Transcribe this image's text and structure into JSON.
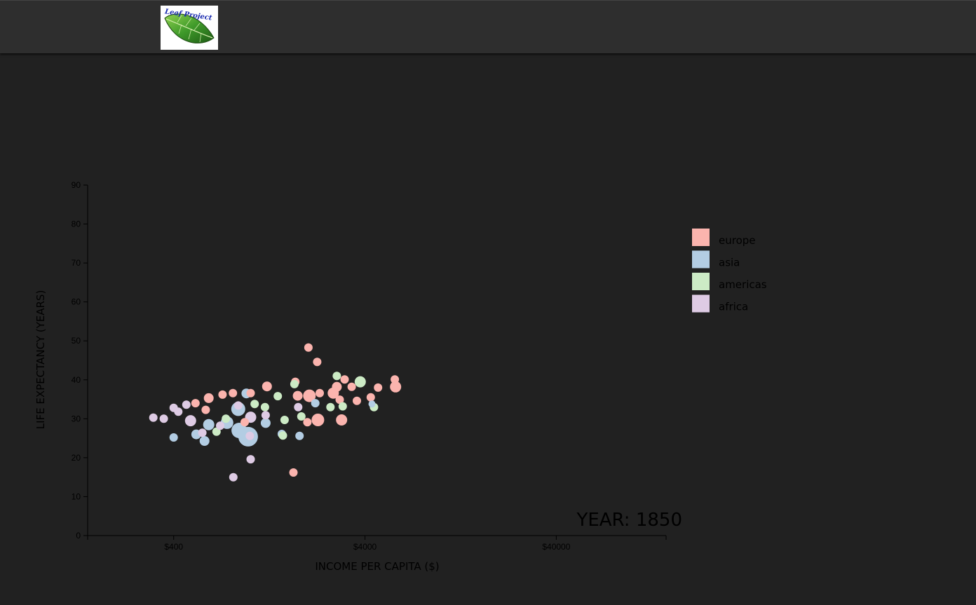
{
  "header": {
    "logo_text": "Leaf Project"
  },
  "chart_data": {
    "type": "scatter",
    "xlabel": "INCOME PER CAPITA ($)",
    "ylabel": "LIFE EXPECTANCY (YEARS)",
    "x_scale": "log",
    "xlim": [
      142,
      150000
    ],
    "ylim": [
      0,
      90
    ],
    "x_ticks": [
      {
        "value": 400,
        "label": "$400"
      },
      {
        "value": 4000,
        "label": "$4000"
      },
      {
        "value": 40000,
        "label": "$40000"
      }
    ],
    "y_ticks": [
      0,
      10,
      20,
      30,
      40,
      50,
      60,
      70,
      80,
      90
    ],
    "year_label": "YEAR: 1850",
    "legend_position": "right",
    "legend": [
      {
        "label": "europe",
        "color": "#fbb4ae"
      },
      {
        "label": "asia",
        "color": "#b3cde3"
      },
      {
        "label": "americas",
        "color": "#ccebc5"
      },
      {
        "label": "africa",
        "color": "#decbe4"
      }
    ],
    "points": [
      {
        "continent": "europe",
        "x": 2025,
        "y": 48.3,
        "r": 6
      },
      {
        "continent": "europe",
        "x": 2250,
        "y": 44.6,
        "r": 6
      },
      {
        "continent": "europe",
        "x": 5730,
        "y": 40.1,
        "r": 6
      },
      {
        "continent": "europe",
        "x": 5780,
        "y": 38.2,
        "r": 8
      },
      {
        "continent": "europe",
        "x": 3130,
        "y": 40.1,
        "r": 6
      },
      {
        "continent": "europe",
        "x": 3410,
        "y": 38.2,
        "r": 6
      },
      {
        "continent": "europe",
        "x": 2850,
        "y": 38.2,
        "r": 7
      },
      {
        "continent": "europe",
        "x": 2730,
        "y": 36.6,
        "r": 8
      },
      {
        "continent": "europe",
        "x": 2320,
        "y": 36.6,
        "r": 6
      },
      {
        "continent": "europe",
        "x": 2050,
        "y": 35.9,
        "r": 9
      },
      {
        "continent": "europe",
        "x": 1780,
        "y": 35.9,
        "r": 7
      },
      {
        "continent": "europe",
        "x": 1730,
        "y": 39.5,
        "r": 6
      },
      {
        "continent": "europe",
        "x": 1230,
        "y": 38.3,
        "r": 7
      },
      {
        "continent": "europe",
        "x": 2000,
        "y": 29.1,
        "r": 6
      },
      {
        "continent": "europe",
        "x": 2270,
        "y": 29.7,
        "r": 9
      },
      {
        "continent": "europe",
        "x": 2950,
        "y": 34.9,
        "r": 6
      },
      {
        "continent": "europe",
        "x": 3020,
        "y": 29.7,
        "r": 8
      },
      {
        "continent": "europe",
        "x": 3630,
        "y": 34.6,
        "r": 6
      },
      {
        "continent": "europe",
        "x": 4290,
        "y": 35.5,
        "r": 6
      },
      {
        "continent": "europe",
        "x": 4680,
        "y": 38.0,
        "r": 6
      },
      {
        "continent": "europe",
        "x": 1690,
        "y": 16.2,
        "r": 6
      },
      {
        "continent": "europe",
        "x": 940,
        "y": 29.1,
        "r": 6
      },
      {
        "continent": "europe",
        "x": 1010,
        "y": 36.6,
        "r": 6
      },
      {
        "continent": "europe",
        "x": 720,
        "y": 36.2,
        "r": 6
      },
      {
        "continent": "europe",
        "x": 610,
        "y": 35.3,
        "r": 7
      },
      {
        "continent": "europe",
        "x": 520,
        "y": 34.0,
        "r": 6
      },
      {
        "continent": "europe",
        "x": 588,
        "y": 32.3,
        "r": 6
      },
      {
        "continent": "europe",
        "x": 816,
        "y": 36.6,
        "r": 6
      },
      {
        "continent": "asia",
        "x": 400,
        "y": 25.2,
        "r": 6
      },
      {
        "continent": "asia",
        "x": 525,
        "y": 26.0,
        "r": 7
      },
      {
        "continent": "asia",
        "x": 580,
        "y": 24.3,
        "r": 7
      },
      {
        "continent": "asia",
        "x": 610,
        "y": 28.5,
        "r": 8
      },
      {
        "continent": "asia",
        "x": 760,
        "y": 29.0,
        "r": 9
      },
      {
        "continent": "asia",
        "x": 880,
        "y": 27.0,
        "r": 11
      },
      {
        "continent": "asia",
        "x": 980,
        "y": 25.4,
        "r": 14
      },
      {
        "continent": "asia",
        "x": 870,
        "y": 32.5,
        "r": 10
      },
      {
        "continent": "asia",
        "x": 960,
        "y": 36.5,
        "r": 7
      },
      {
        "continent": "asia",
        "x": 1210,
        "y": 28.9,
        "r": 7
      },
      {
        "continent": "asia",
        "x": 1470,
        "y": 26.1,
        "r": 6
      },
      {
        "continent": "asia",
        "x": 1820,
        "y": 25.6,
        "r": 6
      },
      {
        "continent": "asia",
        "x": 2200,
        "y": 34.0,
        "r": 6
      },
      {
        "continent": "asia",
        "x": 4350,
        "y": 33.8,
        "r": 5
      },
      {
        "continent": "americas",
        "x": 2850,
        "y": 41.0,
        "r": 6
      },
      {
        "continent": "americas",
        "x": 3780,
        "y": 39.5,
        "r": 8
      },
      {
        "continent": "americas",
        "x": 2640,
        "y": 33.0,
        "r": 6
      },
      {
        "continent": "americas",
        "x": 3060,
        "y": 33.2,
        "r": 6
      },
      {
        "continent": "americas",
        "x": 4460,
        "y": 33.0,
        "r": 6
      },
      {
        "continent": "americas",
        "x": 1710,
        "y": 38.9,
        "r": 6
      },
      {
        "continent": "americas",
        "x": 1400,
        "y": 35.8,
        "r": 6
      },
      {
        "continent": "americas",
        "x": 1520,
        "y": 29.7,
        "r": 6
      },
      {
        "continent": "americas",
        "x": 1490,
        "y": 25.7,
        "r": 6
      },
      {
        "continent": "americas",
        "x": 1860,
        "y": 30.6,
        "r": 6
      },
      {
        "continent": "americas",
        "x": 1200,
        "y": 33.0,
        "r": 6
      },
      {
        "continent": "americas",
        "x": 750,
        "y": 30.0,
        "r": 6
      },
      {
        "continent": "americas",
        "x": 670,
        "y": 26.7,
        "r": 6
      },
      {
        "continent": "americas",
        "x": 1060,
        "y": 33.8,
        "r": 6
      },
      {
        "continent": "africa",
        "x": 313,
        "y": 30.3,
        "r": 6
      },
      {
        "continent": "africa",
        "x": 355,
        "y": 30.0,
        "r": 6
      },
      {
        "continent": "africa",
        "x": 400,
        "y": 32.8,
        "r": 6
      },
      {
        "continent": "africa",
        "x": 423,
        "y": 31.8,
        "r": 6
      },
      {
        "continent": "africa",
        "x": 466,
        "y": 33.6,
        "r": 6
      },
      {
        "continent": "africa",
        "x": 490,
        "y": 29.5,
        "r": 8
      },
      {
        "continent": "africa",
        "x": 565,
        "y": 26.4,
        "r": 6
      },
      {
        "continent": "africa",
        "x": 700,
        "y": 28.2,
        "r": 6
      },
      {
        "continent": "africa",
        "x": 870,
        "y": 33.4,
        "r": 6
      },
      {
        "continent": "africa",
        "x": 1010,
        "y": 30.4,
        "r": 8
      },
      {
        "continent": "africa",
        "x": 1210,
        "y": 30.9,
        "r": 6
      },
      {
        "continent": "africa",
        "x": 1000,
        "y": 25.6,
        "r": 6
      },
      {
        "continent": "africa",
        "x": 1010,
        "y": 19.6,
        "r": 6
      },
      {
        "continent": "africa",
        "x": 820,
        "y": 15.0,
        "r": 6
      },
      {
        "continent": "africa",
        "x": 1790,
        "y": 33.0,
        "r": 6
      }
    ]
  }
}
